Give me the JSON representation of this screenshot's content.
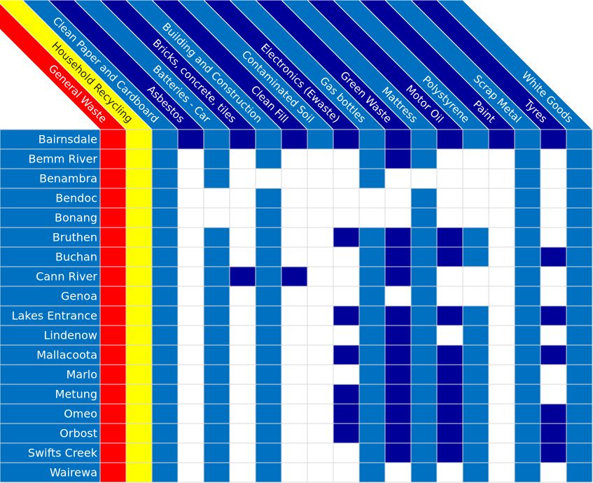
{
  "columns": [
    {
      "label": "General Waste",
      "color": "#ff0000"
    },
    {
      "label": "Household Recycling",
      "color": "#ffff00"
    },
    {
      "label": "Clean Paper and Cardboard",
      "color": "#0070c0"
    },
    {
      "label": "Asbestos",
      "color": "#000099"
    },
    {
      "label": "Batteries - Car",
      "color": "#0070c0"
    },
    {
      "label": "Bricks, concrete, tiles",
      "color": "#000099"
    },
    {
      "label": "Building and Construction",
      "color": "#0070c0"
    },
    {
      "label": "Clean Fill",
      "color": "#000099"
    },
    {
      "label": "Contaminated Soil",
      "color": "#0070c0"
    },
    {
      "label": "Electronics (Ewaste)",
      "color": "#000099"
    },
    {
      "label": "Gas bottles",
      "color": "#0070c0"
    },
    {
      "label": "Green Waste",
      "color": "#000099"
    },
    {
      "label": "Mattress",
      "color": "#0070c0"
    },
    {
      "label": "Motor Oil",
      "color": "#000099"
    },
    {
      "label": "Polystyrene",
      "color": "#0070c0"
    },
    {
      "label": "Paint",
      "color": "#000099"
    },
    {
      "label": "Scrap Metal",
      "color": "#0070c0"
    },
    {
      "label": "Tyres",
      "color": "#000099"
    },
    {
      "label": "White Goods",
      "color": "#0070c0"
    }
  ],
  "rows": [
    {
      "name": "Bairnsdale",
      "cells": [
        "#ff0000",
        "#ffff00",
        "#0070c0",
        "#000099",
        "#0070c0",
        "#000099",
        "#0070c0",
        "#000099",
        "#0070c0",
        "#000099",
        "#0070c0",
        "#000099",
        "#0070c0",
        "#000099",
        "#0070c0",
        "#000099",
        "#0070c0",
        "#000099",
        "#0070c0"
      ]
    },
    {
      "name": "Bemm River",
      "cells": [
        "#ff0000",
        "#ffff00",
        "#0070c0",
        "#ffffff",
        "#0070c0",
        "#ffffff",
        "#0070c0",
        "#ffffff",
        "#ffffff",
        "#ffffff",
        "#0070c0",
        "#000099",
        "#0070c0",
        "#ffffff",
        "#ffffff",
        "#ffffff",
        "#0070c0",
        "#ffffff",
        "#0070c0"
      ]
    },
    {
      "name": "Benambra",
      "cells": [
        "#ff0000",
        "#ffff00",
        "#0070c0",
        "#ffffff",
        "#0070c0",
        "#ffffff",
        "#ffffff",
        "#ffffff",
        "#ffffff",
        "#ffffff",
        "#0070c0",
        "#ffffff",
        "#ffffff",
        "#ffffff",
        "#ffffff",
        "#ffffff",
        "#0070c0",
        "#ffffff",
        "#0070c0"
      ]
    },
    {
      "name": "Bendoc",
      "cells": [
        "#ff0000",
        "#ffff00",
        "#0070c0",
        "#ffffff",
        "#ffffff",
        "#ffffff",
        "#0070c0",
        "#ffffff",
        "#ffffff",
        "#ffffff",
        "#ffffff",
        "#ffffff",
        "#0070c0",
        "#ffffff",
        "#ffffff",
        "#ffffff",
        "#0070c0",
        "#ffffff",
        "#0070c0"
      ]
    },
    {
      "name": "Bonang",
      "cells": [
        "#ff0000",
        "#ffff00",
        "#0070c0",
        "#ffffff",
        "#ffffff",
        "#ffffff",
        "#0070c0",
        "#ffffff",
        "#ffffff",
        "#ffffff",
        "#ffffff",
        "#ffffff",
        "#0070c0",
        "#ffffff",
        "#ffffff",
        "#ffffff",
        "#0070c0",
        "#ffffff",
        "#0070c0"
      ]
    },
    {
      "name": "Bruthen",
      "cells": [
        "#ff0000",
        "#ffff00",
        "#0070c0",
        "#ffffff",
        "#0070c0",
        "#ffffff",
        "#0070c0",
        "#ffffff",
        "#ffffff",
        "#000099",
        "#0070c0",
        "#000099",
        "#0070c0",
        "#000099",
        "#0070c0",
        "#ffffff",
        "#0070c0",
        "#ffffff",
        "#0070c0"
      ]
    },
    {
      "name": "Buchan",
      "cells": [
        "#ff0000",
        "#ffff00",
        "#0070c0",
        "#ffffff",
        "#0070c0",
        "#ffffff",
        "#0070c0",
        "#ffffff",
        "#ffffff",
        "#ffffff",
        "#0070c0",
        "#000099",
        "#0070c0",
        "#000099",
        "#0070c0",
        "#ffffff",
        "#0070c0",
        "#000099",
        "#0070c0"
      ]
    },
    {
      "name": "Cann River",
      "cells": [
        "#ff0000",
        "#ffff00",
        "#0070c0",
        "#ffffff",
        "#0070c0",
        "#000099",
        "#0070c0",
        "#000099",
        "#ffffff",
        "#ffffff",
        "#0070c0",
        "#000099",
        "#0070c0",
        "#ffffff",
        "#ffffff",
        "#ffffff",
        "#0070c0",
        "#ffffff",
        "#0070c0"
      ]
    },
    {
      "name": "Genoa",
      "cells": [
        "#ff0000",
        "#ffff00",
        "#0070c0",
        "#ffffff",
        "#0070c0",
        "#ffffff",
        "#0070c0",
        "#ffffff",
        "#ffffff",
        "#ffffff",
        "#0070c0",
        "#ffffff",
        "#0070c0",
        "#ffffff",
        "#ffffff",
        "#ffffff",
        "#0070c0",
        "#ffffff",
        "#0070c0"
      ]
    },
    {
      "name": "Lakes Entrance",
      "cells": [
        "#ff0000",
        "#ffff00",
        "#0070c0",
        "#ffffff",
        "#0070c0",
        "#ffffff",
        "#0070c0",
        "#ffffff",
        "#ffffff",
        "#000099",
        "#0070c0",
        "#000099",
        "#0070c0",
        "#000099",
        "#0070c0",
        "#ffffff",
        "#0070c0",
        "#000099",
        "#0070c0"
      ]
    },
    {
      "name": "Lindenow",
      "cells": [
        "#ff0000",
        "#ffff00",
        "#0070c0",
        "#ffffff",
        "#0070c0",
        "#ffffff",
        "#0070c0",
        "#ffffff",
        "#ffffff",
        "#ffffff",
        "#0070c0",
        "#000099",
        "#0070c0",
        "#ffffff",
        "#0070c0",
        "#ffffff",
        "#0070c0",
        "#ffffff",
        "#0070c0"
      ]
    },
    {
      "name": "Mallacoota",
      "cells": [
        "#ff0000",
        "#ffff00",
        "#0070c0",
        "#ffffff",
        "#0070c0",
        "#ffffff",
        "#0070c0",
        "#ffffff",
        "#ffffff",
        "#000099",
        "#0070c0",
        "#000099",
        "#0070c0",
        "#000099",
        "#0070c0",
        "#ffffff",
        "#0070c0",
        "#000099",
        "#0070c0"
      ]
    },
    {
      "name": "Marlo",
      "cells": [
        "#ff0000",
        "#ffff00",
        "#0070c0",
        "#ffffff",
        "#0070c0",
        "#ffffff",
        "#0070c0",
        "#ffffff",
        "#ffffff",
        "#ffffff",
        "#0070c0",
        "#000099",
        "#0070c0",
        "#000099",
        "#0070c0",
        "#ffffff",
        "#0070c0",
        "#ffffff",
        "#0070c0"
      ]
    },
    {
      "name": "Metung",
      "cells": [
        "#ff0000",
        "#ffff00",
        "#0070c0",
        "#ffffff",
        "#0070c0",
        "#ffffff",
        "#0070c0",
        "#ffffff",
        "#ffffff",
        "#000099",
        "#0070c0",
        "#000099",
        "#0070c0",
        "#000099",
        "#0070c0",
        "#ffffff",
        "#0070c0",
        "#ffffff",
        "#0070c0"
      ]
    },
    {
      "name": "Omeo",
      "cells": [
        "#ff0000",
        "#ffff00",
        "#0070c0",
        "#ffffff",
        "#0070c0",
        "#ffffff",
        "#0070c0",
        "#ffffff",
        "#ffffff",
        "#000099",
        "#0070c0",
        "#000099",
        "#0070c0",
        "#000099",
        "#0070c0",
        "#ffffff",
        "#0070c0",
        "#000099",
        "#0070c0"
      ]
    },
    {
      "name": "Orbost",
      "cells": [
        "#ff0000",
        "#ffff00",
        "#0070c0",
        "#ffffff",
        "#0070c0",
        "#ffffff",
        "#0070c0",
        "#ffffff",
        "#ffffff",
        "#000099",
        "#0070c0",
        "#000099",
        "#0070c0",
        "#000099",
        "#0070c0",
        "#ffffff",
        "#0070c0",
        "#000099",
        "#0070c0"
      ]
    },
    {
      "name": "Swifts Creek",
      "cells": [
        "#ff0000",
        "#ffff00",
        "#0070c0",
        "#ffffff",
        "#0070c0",
        "#ffffff",
        "#0070c0",
        "#ffffff",
        "#ffffff",
        "#ffffff",
        "#0070c0",
        "#000099",
        "#0070c0",
        "#000099",
        "#0070c0",
        "#ffffff",
        "#0070c0",
        "#000099",
        "#0070c0"
      ]
    },
    {
      "name": "Wairewa",
      "cells": [
        "#ff0000",
        "#ffff00",
        "#0070c0",
        "#ffffff",
        "#0070c0",
        "#ffffff",
        "#0070c0",
        "#ffffff",
        "#ffffff",
        "#ffffff",
        "#0070c0",
        "#ffffff",
        "#0070c0",
        "#ffffff",
        "#0070c0",
        "#ffffff",
        "#0070c0",
        "#ffffff",
        "#0070c0"
      ]
    }
  ]
}
